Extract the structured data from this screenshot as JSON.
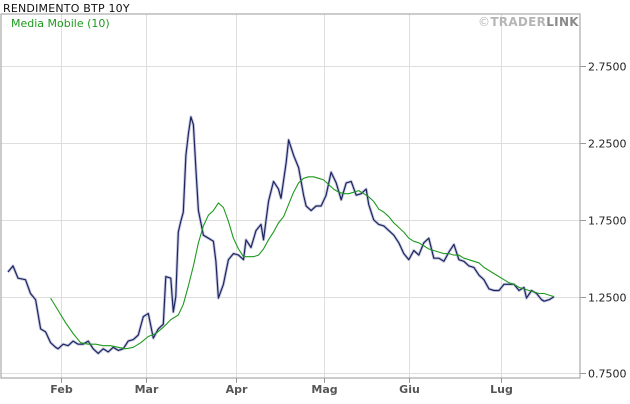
{
  "title": "RENDIMENTO BTP 10Y",
  "brand": {
    "symbol": "©",
    "part1": "TRADER",
    "part2": "LINK"
  },
  "colors": {
    "price": "#1c2560",
    "ma": "#1e9a1e",
    "grid": "#dedede",
    "axis": "#9a9a9a",
    "brand_link": "#8a8a8a"
  },
  "chart_data": {
    "type": "line",
    "title": "RENDIMENTO BTP 10Y",
    "xlabel": "",
    "ylabel": "",
    "y_axis_position": "right",
    "ylim": [
      0.72,
      3.09
    ],
    "y_ticks": [
      0.75,
      1.25,
      1.75,
      2.25,
      2.75
    ],
    "y_tick_labels": [
      "0.7500",
      "1.2500",
      "1.7500",
      "2.2500",
      "2.7500"
    ],
    "x_ticks": [
      {
        "index": 21,
        "label": "Feb"
      },
      {
        "index": 55,
        "label": "Mar"
      },
      {
        "index": 91,
        "label": "Apr"
      },
      {
        "index": 126,
        "label": "Mag"
      },
      {
        "index": 160,
        "label": "Giu"
      },
      {
        "index": 197,
        "label": "Lug"
      }
    ],
    "x_count": 211,
    "grid": true,
    "legend": "top-left",
    "series": [
      {
        "name": "",
        "color": "#1c2560",
        "values": [
          [
            0,
            1.41
          ],
          [
            2,
            1.45
          ],
          [
            4,
            1.37
          ],
          [
            7,
            1.36
          ],
          [
            9,
            1.27
          ],
          [
            11,
            1.23
          ],
          [
            13,
            1.04
          ],
          [
            15,
            1.02
          ],
          [
            17,
            0.95
          ],
          [
            19,
            0.92
          ],
          [
            20,
            0.91
          ],
          [
            22,
            0.94
          ],
          [
            24,
            0.93
          ],
          [
            26,
            0.96
          ],
          [
            28,
            0.94
          ],
          [
            30,
            0.94
          ],
          [
            32,
            0.96
          ],
          [
            34,
            0.91
          ],
          [
            36,
            0.88
          ],
          [
            38,
            0.91
          ],
          [
            40,
            0.89
          ],
          [
            42,
            0.92
          ],
          [
            44,
            0.9
          ],
          [
            46,
            0.91
          ],
          [
            48,
            0.96
          ],
          [
            50,
            0.97
          ],
          [
            52,
            1.0
          ],
          [
            54,
            1.12
          ],
          [
            56,
            1.14
          ],
          [
            58,
            0.98
          ],
          [
            60,
            1.04
          ],
          [
            62,
            1.07
          ],
          [
            63,
            1.38
          ],
          [
            65,
            1.37
          ],
          [
            66,
            1.15
          ],
          [
            67,
            1.25
          ],
          [
            68,
            1.67
          ],
          [
            69,
            1.74
          ],
          [
            70,
            1.8
          ],
          [
            71,
            2.17
          ],
          [
            72,
            2.31
          ],
          [
            73,
            2.42
          ],
          [
            74,
            2.37
          ],
          [
            75,
            2.08
          ],
          [
            76,
            1.81
          ],
          [
            77,
            1.73
          ],
          [
            78,
            1.65
          ],
          [
            80,
            1.63
          ],
          [
            82,
            1.61
          ],
          [
            83,
            1.48
          ],
          [
            84,
            1.24
          ],
          [
            86,
            1.33
          ],
          [
            88,
            1.49
          ],
          [
            90,
            1.53
          ],
          [
            92,
            1.52
          ],
          [
            94,
            1.49
          ],
          [
            95,
            1.62
          ],
          [
            97,
            1.57
          ],
          [
            99,
            1.68
          ],
          [
            101,
            1.72
          ],
          [
            102,
            1.62
          ],
          [
            104,
            1.87
          ],
          [
            106,
            2.0
          ],
          [
            108,
            1.95
          ],
          [
            109,
            1.89
          ],
          [
            111,
            2.12
          ],
          [
            112,
            2.27
          ],
          [
            114,
            2.17
          ],
          [
            116,
            2.09
          ],
          [
            118,
            1.91
          ],
          [
            119,
            1.84
          ],
          [
            121,
            1.81
          ],
          [
            123,
            1.84
          ],
          [
            125,
            1.84
          ],
          [
            127,
            1.91
          ],
          [
            129,
            2.06
          ],
          [
            131,
            1.99
          ],
          [
            133,
            1.88
          ],
          [
            135,
            1.99
          ],
          [
            137,
            2.0
          ],
          [
            139,
            1.91
          ],
          [
            141,
            1.92
          ],
          [
            143,
            1.95
          ],
          [
            144,
            1.85
          ],
          [
            146,
            1.75
          ],
          [
            148,
            1.72
          ],
          [
            150,
            1.71
          ],
          [
            152,
            1.68
          ],
          [
            154,
            1.65
          ],
          [
            156,
            1.6
          ],
          [
            158,
            1.53
          ],
          [
            160,
            1.49
          ],
          [
            162,
            1.55
          ],
          [
            164,
            1.52
          ],
          [
            166,
            1.6
          ],
          [
            168,
            1.63
          ],
          [
            170,
            1.5
          ],
          [
            172,
            1.5
          ],
          [
            174,
            1.48
          ],
          [
            176,
            1.54
          ],
          [
            178,
            1.59
          ],
          [
            180,
            1.49
          ],
          [
            182,
            1.48
          ],
          [
            184,
            1.45
          ],
          [
            186,
            1.44
          ],
          [
            188,
            1.39
          ],
          [
            190,
            1.36
          ],
          [
            192,
            1.3
          ],
          [
            194,
            1.29
          ],
          [
            196,
            1.29
          ],
          [
            198,
            1.33
          ],
          [
            200,
            1.33
          ],
          [
            202,
            1.33
          ],
          [
            204,
            1.29
          ],
          [
            206,
            1.31
          ],
          [
            207,
            1.24
          ],
          [
            209,
            1.29
          ],
          [
            211,
            1.27
          ],
          [
            213,
            1.23
          ],
          [
            214,
            1.22
          ],
          [
            216,
            1.23
          ],
          [
            218,
            1.25
          ]
        ]
      },
      {
        "name": "Media Mobile  (10)",
        "color": "#1e9a1e",
        "values": [
          [
            17,
            1.24
          ],
          [
            20,
            1.16
          ],
          [
            23,
            1.08
          ],
          [
            26,
            1.01
          ],
          [
            29,
            0.95
          ],
          [
            32,
            0.94
          ],
          [
            35,
            0.94
          ],
          [
            38,
            0.93
          ],
          [
            41,
            0.93
          ],
          [
            44,
            0.92
          ],
          [
            47,
            0.91
          ],
          [
            50,
            0.92
          ],
          [
            53,
            0.95
          ],
          [
            56,
            0.99
          ],
          [
            59,
            1.01
          ],
          [
            62,
            1.05
          ],
          [
            65,
            1.1
          ],
          [
            68,
            1.13
          ],
          [
            70,
            1.2
          ],
          [
            72,
            1.32
          ],
          [
            74,
            1.45
          ],
          [
            76,
            1.6
          ],
          [
            78,
            1.71
          ],
          [
            80,
            1.78
          ],
          [
            82,
            1.81
          ],
          [
            84,
            1.86
          ],
          [
            86,
            1.83
          ],
          [
            88,
            1.74
          ],
          [
            90,
            1.63
          ],
          [
            92,
            1.56
          ],
          [
            94,
            1.51
          ],
          [
            96,
            1.51
          ],
          [
            98,
            1.51
          ],
          [
            100,
            1.52
          ],
          [
            102,
            1.56
          ],
          [
            104,
            1.62
          ],
          [
            106,
            1.67
          ],
          [
            108,
            1.73
          ],
          [
            110,
            1.77
          ],
          [
            112,
            1.85
          ],
          [
            114,
            1.93
          ],
          [
            116,
            1.99
          ],
          [
            118,
            2.02
          ],
          [
            120,
            2.03
          ],
          [
            122,
            2.03
          ],
          [
            124,
            2.02
          ],
          [
            126,
            2.01
          ],
          [
            128,
            1.98
          ],
          [
            130,
            1.95
          ],
          [
            132,
            1.93
          ],
          [
            134,
            1.92
          ],
          [
            136,
            1.92
          ],
          [
            138,
            1.93
          ],
          [
            140,
            1.94
          ],
          [
            142,
            1.92
          ],
          [
            144,
            1.9
          ],
          [
            146,
            1.87
          ],
          [
            148,
            1.82
          ],
          [
            150,
            1.8
          ],
          [
            152,
            1.77
          ],
          [
            154,
            1.73
          ],
          [
            156,
            1.7
          ],
          [
            158,
            1.67
          ],
          [
            160,
            1.63
          ],
          [
            162,
            1.61
          ],
          [
            164,
            1.6
          ],
          [
            166,
            1.58
          ],
          [
            168,
            1.56
          ],
          [
            170,
            1.55
          ],
          [
            172,
            1.54
          ],
          [
            174,
            1.53
          ],
          [
            176,
            1.53
          ],
          [
            178,
            1.52
          ],
          [
            180,
            1.52
          ],
          [
            182,
            1.5
          ],
          [
            184,
            1.49
          ],
          [
            186,
            1.48
          ],
          [
            188,
            1.47
          ],
          [
            190,
            1.44
          ],
          [
            192,
            1.42
          ],
          [
            194,
            1.4
          ],
          [
            196,
            1.38
          ],
          [
            198,
            1.36
          ],
          [
            200,
            1.34
          ],
          [
            202,
            1.33
          ],
          [
            204,
            1.31
          ],
          [
            206,
            1.3
          ],
          [
            208,
            1.29
          ],
          [
            210,
            1.28
          ],
          [
            212,
            1.27
          ],
          [
            214,
            1.27
          ],
          [
            216,
            1.26
          ],
          [
            218,
            1.25
          ]
        ]
      }
    ]
  }
}
